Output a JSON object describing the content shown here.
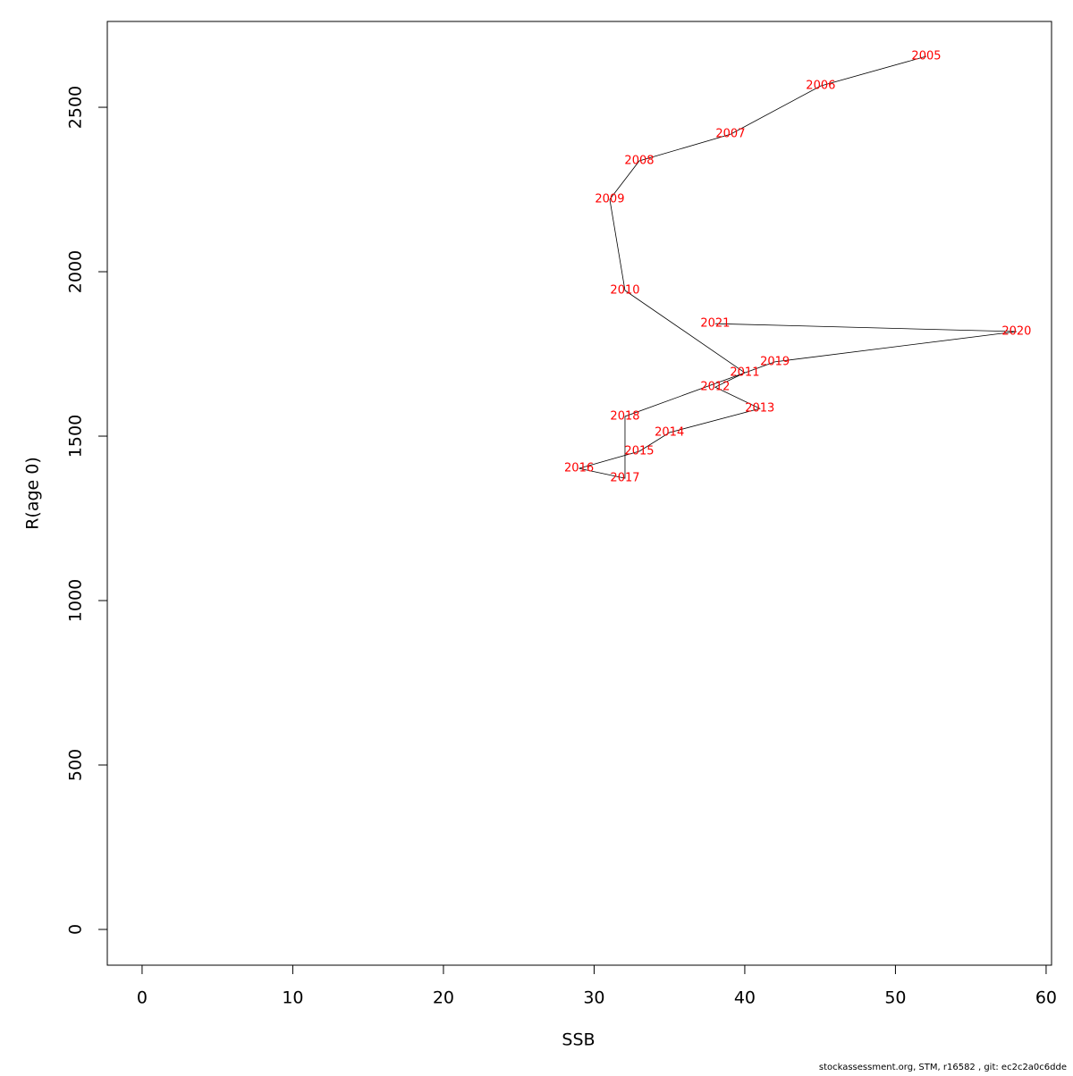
{
  "chart_data": {
    "type": "line",
    "x_label": "SSB",
    "y_label": "R(age 0)",
    "x": [
      52.05,
      45.04,
      39.05,
      33.0,
      31.04,
      32.05,
      40.0,
      38.04,
      41.0,
      35.0,
      33.0,
      29.0,
      32.05,
      32.05,
      42.0,
      58.04,
      38.04
    ],
    "values": [
      2655,
      2565,
      2418,
      2337,
      2220,
      1943,
      1693,
      1649,
      1584,
      1511,
      1454,
      1402,
      1372,
      1560,
      1726,
      1818,
      1842
    ],
    "point_labels": [
      "2005",
      "2006",
      "2007",
      "2008",
      "2009",
      "2010",
      "2011",
      "2012",
      "2013",
      "2014",
      "2015",
      "2016",
      "2017",
      "2018",
      "2019",
      "2020",
      "2021"
    ],
    "color": "#000000",
    "label_color": "#ff0000",
    "xlim": [
      -2.31,
      60.36
    ],
    "ylim": [
      -108.7,
      2761
    ],
    "xticks": [
      0,
      10,
      20,
      30,
      40,
      50,
      60
    ],
    "yticks": [
      0,
      500,
      1000,
      1500,
      2000,
      2500
    ],
    "footer": "stockassessment.org, STM, r16582 , git: ec2c2a0c6dde"
  }
}
